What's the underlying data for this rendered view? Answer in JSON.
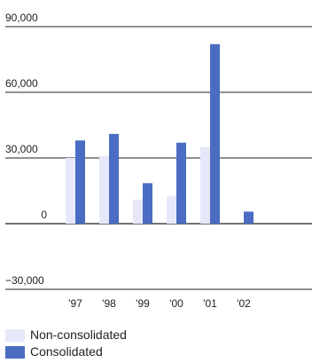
{
  "chart_data": {
    "type": "bar",
    "categories": [
      "'97",
      "'98",
      "'99",
      "'00",
      "'01",
      "'02"
    ],
    "series": [
      {
        "name": "Non-consolidated",
        "values": [
          30000,
          31000,
          11000,
          12500,
          35000,
          null
        ],
        "color": "#e6e8fa"
      },
      {
        "name": "Consolidated",
        "values": [
          38000,
          41000,
          18500,
          37000,
          82000,
          5500
        ],
        "color": "#4a6cc2"
      }
    ],
    "y_ticks": [
      {
        "value": 90000,
        "label": "90,000"
      },
      {
        "value": 60000,
        "label": "60,000"
      },
      {
        "value": 30000,
        "label": "30,000"
      },
      {
        "value": 0,
        "label": "0"
      },
      {
        "value": -30000,
        "label": "−30,000"
      }
    ],
    "ylim": [
      -30000,
      90000
    ],
    "grid": true,
    "legend": "bottom-left"
  }
}
